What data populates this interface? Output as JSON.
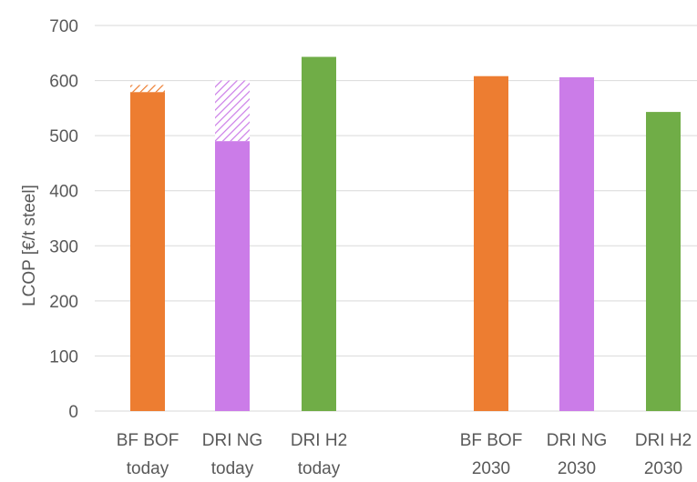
{
  "chart_data": {
    "type": "bar",
    "ylabel": "LCOP [€/t steel]",
    "xlabel": "",
    "ylim": [
      0,
      700
    ],
    "yticks": [
      0,
      100,
      200,
      300,
      400,
      500,
      600,
      700
    ],
    "grid": true,
    "legend": "none",
    "categories": [
      {
        "line1": "BF BOF",
        "line2": "today"
      },
      {
        "line1": "DRI NG",
        "line2": "today"
      },
      {
        "line1": "DRI H2",
        "line2": "today"
      },
      {
        "line1": "",
        "line2": ""
      },
      {
        "line1": "BF BOF",
        "line2": "2030"
      },
      {
        "line1": "DRI NG",
        "line2": "2030"
      },
      {
        "line1": "DRI H2",
        "line2": "2030"
      }
    ],
    "values": [
      579,
      490,
      643,
      null,
      608,
      606,
      543
    ],
    "hatched_extension_top": [
      592,
      600,
      null,
      null,
      null,
      null,
      null
    ],
    "colors": [
      "#ED7D31",
      "#CB7CE8",
      "#70AD47",
      null,
      "#ED7D31",
      "#CB7CE8",
      "#70AD47"
    ],
    "gridline_color": "#d9d9d9"
  }
}
